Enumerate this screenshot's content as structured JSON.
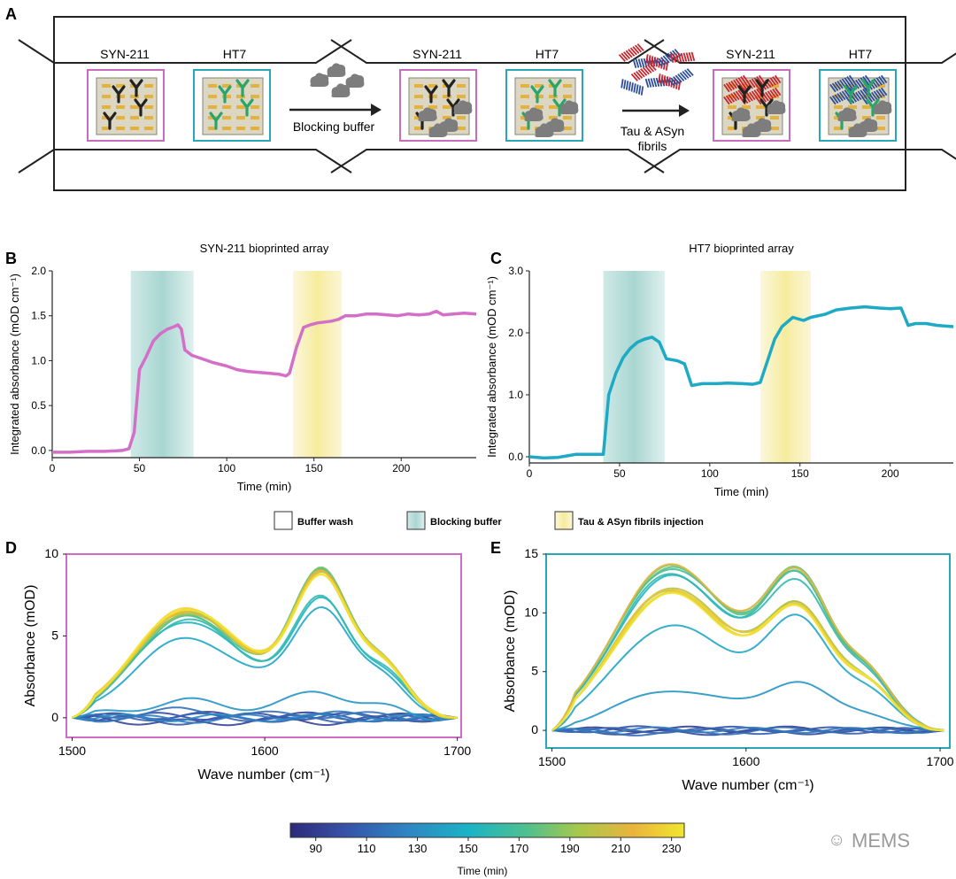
{
  "panel_labels": [
    "A",
    "B",
    "C",
    "D",
    "E"
  ],
  "schematic": {
    "antibody_left": "SYN-211",
    "antibody_right": "HT7",
    "step1_label": "Blocking buffer",
    "step2_label_lines": [
      "Tau & ASyn",
      "fibrils"
    ],
    "colors": {
      "syn_frame": "#c86cbf",
      "ht7_frame": "#2aa8b8",
      "tau": "#c7262e",
      "asyn": "#2d4e9b",
      "ab_green": "#28a56a"
    }
  },
  "legend": {
    "items": [
      {
        "label": "Buffer wash",
        "color": "#ffffff"
      },
      {
        "label": "Blocking buffer",
        "color": "#b9dedc"
      },
      {
        "label": "Tau & ASyn fibrils injection",
        "color": "#f8f1b8"
      }
    ]
  },
  "colorbar": {
    "label": "Time (min)",
    "ticks": [
      "90",
      "110",
      "130",
      "150",
      "170",
      "190",
      "210",
      "230"
    ],
    "min": 80,
    "max": 235,
    "colors": [
      "#2e2a7a",
      "#3652a8",
      "#2f86c3",
      "#1ab3c6",
      "#4fc08f",
      "#a6c84b",
      "#eab43c",
      "#f1e62e"
    ]
  },
  "watermark": "MEMS",
  "chart_data": [
    {
      "id": "B",
      "type": "line",
      "title": "SYN-211 bioprinted array",
      "xlabel": "Time (min)",
      "ylabel": "Integrated absorbance (mOD cm⁻¹)",
      "xlim": [
        0,
        243
      ],
      "ylim": [
        -0.08,
        2.0
      ],
      "xticks": [
        "0",
        "50",
        "100",
        "150",
        "200"
      ],
      "yticks": [
        "0.0",
        "0.5",
        "1.0",
        "1.5",
        "2.0"
      ],
      "line_color": "#d46fc8",
      "bands": [
        {
          "kind": "blocking",
          "x": [
            45,
            81
          ]
        },
        {
          "kind": "fibrils",
          "x": [
            138,
            166
          ]
        }
      ],
      "x": [
        0,
        10,
        20,
        30,
        40,
        44,
        47,
        50,
        54,
        58,
        62,
        66,
        70,
        72,
        74,
        76,
        80,
        86,
        92,
        100,
        106,
        112,
        118,
        124,
        130,
        134,
        136,
        140,
        144,
        148,
        152,
        156,
        160,
        164,
        168,
        174,
        180,
        186,
        192,
        198,
        204,
        210,
        216,
        220,
        224,
        230,
        236,
        243
      ],
      "y": [
        -0.02,
        -0.02,
        -0.01,
        -0.01,
        0.0,
        0.02,
        0.2,
        0.9,
        1.05,
        1.22,
        1.3,
        1.35,
        1.38,
        1.4,
        1.35,
        1.12,
        1.06,
        1.02,
        0.98,
        0.94,
        0.9,
        0.88,
        0.87,
        0.86,
        0.85,
        0.83,
        0.86,
        1.15,
        1.37,
        1.4,
        1.42,
        1.43,
        1.44,
        1.46,
        1.5,
        1.5,
        1.52,
        1.52,
        1.51,
        1.5,
        1.52,
        1.51,
        1.52,
        1.55,
        1.51,
        1.52,
        1.53,
        1.52
      ]
    },
    {
      "id": "C",
      "type": "line",
      "title": "HT7 bioprinted array",
      "xlabel": "Time (min)",
      "ylabel": "Integrated absorbance (mOD cm⁻¹)",
      "xlim": [
        0,
        235
      ],
      "ylim": [
        -0.1,
        3.0
      ],
      "xticks": [
        "0",
        "50",
        "100",
        "150",
        "200"
      ],
      "yticks": [
        "0.0",
        "1.0",
        "2.0",
        "3.0"
      ],
      "line_color": "#1ea9c4",
      "bands": [
        {
          "kind": "blocking",
          "x": [
            41,
            75
          ]
        },
        {
          "kind": "fibrils",
          "x": [
            128,
            156
          ]
        }
      ],
      "x": [
        0,
        8,
        16,
        22,
        26,
        30,
        34,
        38,
        41,
        44,
        48,
        52,
        56,
        60,
        64,
        68,
        72,
        76,
        82,
        86,
        90,
        96,
        104,
        110,
        118,
        124,
        128,
        132,
        136,
        140,
        146,
        152,
        156,
        164,
        170,
        178,
        186,
        194,
        200,
        206,
        210,
        214,
        220,
        226,
        235
      ],
      "y": [
        0.0,
        -0.02,
        -0.01,
        0.02,
        0.04,
        0.04,
        0.04,
        0.04,
        0.04,
        1.0,
        1.35,
        1.6,
        1.75,
        1.85,
        1.9,
        1.93,
        1.85,
        1.58,
        1.55,
        1.5,
        1.15,
        1.18,
        1.18,
        1.19,
        1.18,
        1.17,
        1.2,
        1.55,
        1.9,
        2.1,
        2.25,
        2.2,
        2.25,
        2.3,
        2.37,
        2.4,
        2.42,
        2.4,
        2.39,
        2.4,
        2.12,
        2.15,
        2.15,
        2.12,
        2.1
      ]
    },
    {
      "id": "D",
      "type": "line",
      "xlabel": "Wave number (cm⁻¹)",
      "ylabel": "Absorbance (mOD)",
      "xlim": [
        1497,
        1702
      ],
      "ylim": [
        -1.2,
        10
      ],
      "xticks": [
        "1500",
        "1600",
        "1700"
      ],
      "yticks": [
        "0",
        "5",
        "10"
      ],
      "frame_color": "#d06cc6",
      "profile": {
        "peaks": [
          {
            "center": 1557,
            "height": 1.0,
            "width": 26
          },
          {
            "center": 1630,
            "height": 1.16,
            "width": 15
          },
          {
            "center": 1597,
            "height": 0.2,
            "width": 26
          },
          {
            "center": 1663,
            "height": 0.4,
            "width": 12
          }
        ],
        "x_from": 1500,
        "x_to": 1700,
        "edge_fade": 12
      },
      "spectra": [
        {
          "time": 90,
          "peak1": 0.15,
          "peak2": 0.1
        },
        {
          "time": 95,
          "peak1": -0.3,
          "peak2": -0.2
        },
        {
          "time": 100,
          "peak1": 0.1,
          "peak2": 0.1
        },
        {
          "time": 105,
          "peak1": -0.2,
          "peak2": 0.05
        },
        {
          "time": 110,
          "peak1": 0.05,
          "peak2": -0.1
        },
        {
          "time": 115,
          "peak1": 0.4,
          "peak2": 0.15
        },
        {
          "time": 120,
          "peak1": -0.1,
          "peak2": 0.2
        },
        {
          "time": 125,
          "peak1": 0.0,
          "peak2": 0.0
        },
        {
          "time": 132,
          "peak1": 0.9,
          "peak2": 1.5
        },
        {
          "time": 140,
          "peak1": 4.5,
          "peak2": 6.2
        },
        {
          "time": 148,
          "peak1": 5.5,
          "peak2": 6.6
        },
        {
          "time": 156,
          "peak1": 5.6,
          "peak2": 6.7
        },
        {
          "time": 164,
          "peak1": 5.7,
          "peak2": 8.4
        },
        {
          "time": 172,
          "peak1": 5.8,
          "peak2": 8.3
        },
        {
          "time": 180,
          "peak1": 5.9,
          "peak2": 8.3
        },
        {
          "time": 188,
          "peak1": 5.9,
          "peak2": 8.2
        },
        {
          "time": 196,
          "peak1": 6.0,
          "peak2": 8.2
        },
        {
          "time": 204,
          "peak1": 6.0,
          "peak2": 8.1
        },
        {
          "time": 212,
          "peak1": 6.1,
          "peak2": 8.1
        },
        {
          "time": 220,
          "peak1": 6.1,
          "peak2": 8.0
        },
        {
          "time": 228,
          "peak1": 6.2,
          "peak2": 8.0
        },
        {
          "time": 234,
          "peak1": 6.2,
          "peak2": 7.9
        }
      ]
    },
    {
      "id": "E",
      "type": "line",
      "xlabel": "Wave number (cm⁻¹)",
      "ylabel": "Absorbance (mOD)",
      "xlim": [
        1497,
        1705
      ],
      "ylim": [
        -1.5,
        15
      ],
      "xticks": [
        "1500",
        "1600",
        "1700"
      ],
      "yticks": [
        "0",
        "5",
        "10",
        "15"
      ],
      "frame_color": "#28a7b8",
      "profile": {
        "peaks": [
          {
            "center": 1557,
            "height": 1.0,
            "width": 27
          },
          {
            "center": 1628,
            "height": 0.78,
            "width": 17
          },
          {
            "center": 1594,
            "height": 0.3,
            "width": 25
          },
          {
            "center": 1664,
            "height": 0.34,
            "width": 13
          }
        ],
        "x_from": 1500,
        "x_to": 1703,
        "edge_fade": 12
      },
      "spectra": [
        {
          "time": 90,
          "peak1": 0.1,
          "peak2": 0.1
        },
        {
          "time": 96,
          "peak1": -0.2,
          "peak2": -0.1
        },
        {
          "time": 102,
          "peak1": 0.15,
          "peak2": 0.05
        },
        {
          "time": 108,
          "peak1": 0.0,
          "peak2": -0.15
        },
        {
          "time": 114,
          "peak1": -0.25,
          "peak2": 0.1
        },
        {
          "time": 120,
          "peak1": 0.05,
          "peak2": 0.0
        },
        {
          "time": 132,
          "peak1": 3.0,
          "peak2": 3.6
        },
        {
          "time": 140,
          "peak1": 8.0,
          "peak2": 8.4
        },
        {
          "time": 148,
          "peak1": 11.8,
          "peak2": 11.6
        },
        {
          "time": 156,
          "peak1": 12.0,
          "peak2": 11.0
        },
        {
          "time": 164,
          "peak1": 12.4,
          "peak2": 11.8
        },
        {
          "time": 172,
          "peak1": 12.5,
          "peak2": 11.5
        },
        {
          "time": 180,
          "peak1": 12.6,
          "peak2": 11.9
        },
        {
          "time": 188,
          "peak1": 10.8,
          "peak2": 9.3
        },
        {
          "time": 196,
          "peak1": 11.0,
          "peak2": 9.2
        },
        {
          "time": 204,
          "peak1": 10.6,
          "peak2": 9.0
        },
        {
          "time": 212,
          "peak1": 12.7,
          "peak2": 11.8
        },
        {
          "time": 220,
          "peak1": 10.9,
          "peak2": 9.1
        },
        {
          "time": 228,
          "peak1": 10.7,
          "peak2": 8.9
        },
        {
          "time": 234,
          "peak1": 10.5,
          "peak2": 9.0
        }
      ]
    }
  ]
}
